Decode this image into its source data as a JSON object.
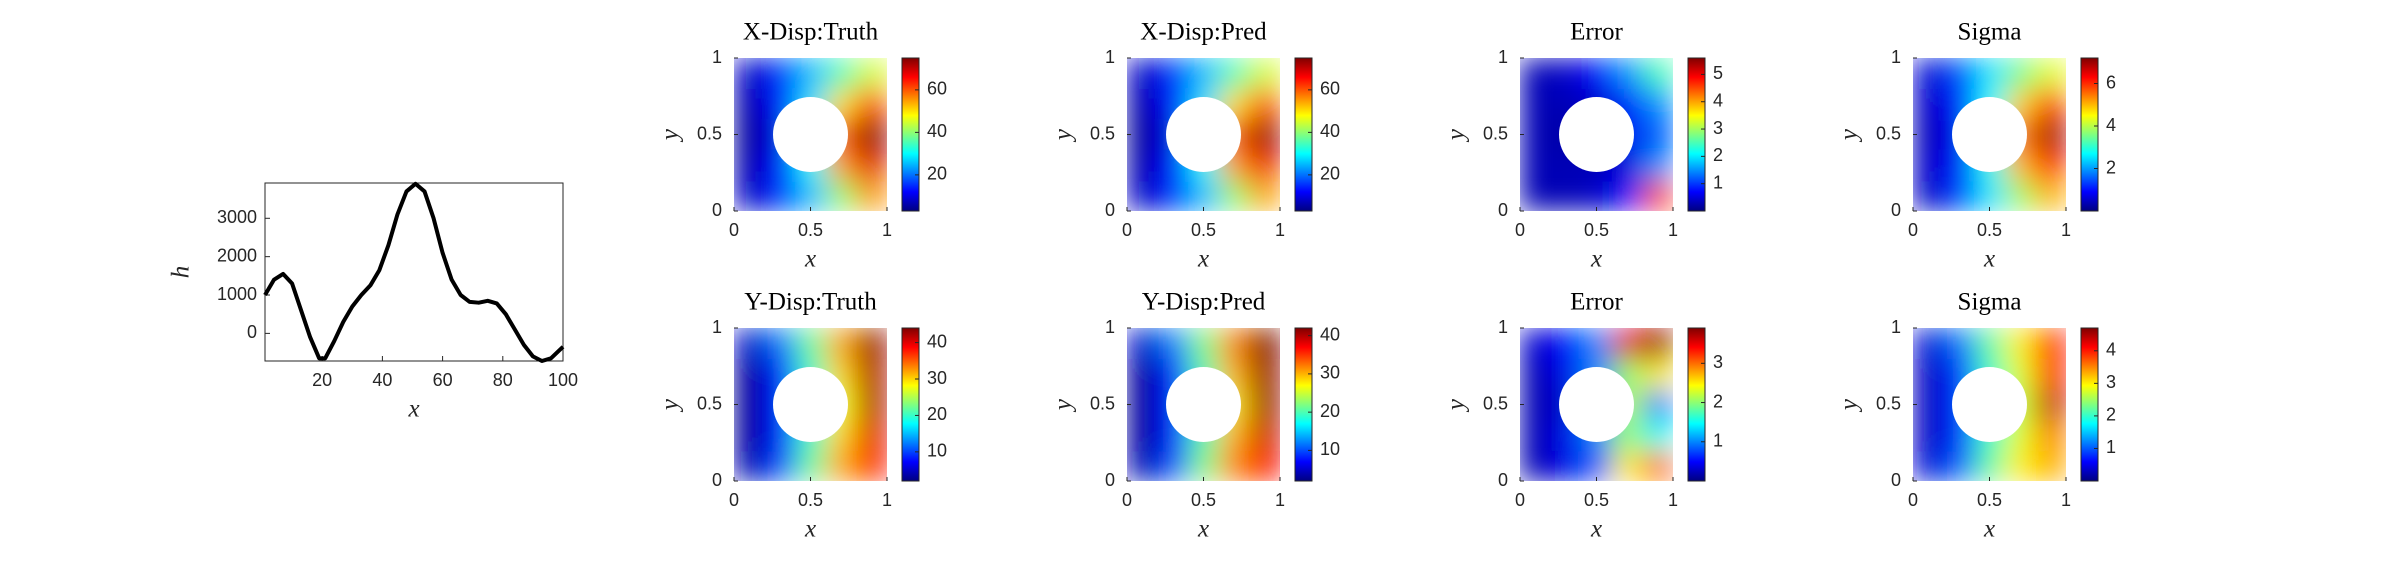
{
  "chart_data": [
    {
      "type": "line",
      "xlabel": "x",
      "ylabel": "h",
      "x": [
        1,
        4,
        7,
        10,
        13,
        16,
        19,
        21,
        24,
        27,
        30,
        33,
        36,
        39,
        42,
        45,
        48,
        51,
        54,
        57,
        60,
        63,
        66,
        69,
        72,
        75,
        78,
        81,
        84,
        87,
        90,
        93,
        96,
        100
      ],
      "series": [
        {
          "color": "#000000",
          "values": [
            1000,
            1400,
            1550,
            1300,
            600,
            -100,
            -650,
            -650,
            -200,
            300,
            700,
            1000,
            1250,
            1650,
            2300,
            3100,
            3700,
            3900,
            3700,
            3000,
            2100,
            1400,
            1000,
            820,
            800,
            850,
            780,
            500,
            100,
            -300,
            -600,
            -720,
            -650,
            -350
          ]
        }
      ],
      "xlim": [
        1,
        100
      ],
      "xticks": [
        20,
        40,
        60,
        80,
        100
      ],
      "ylim": [
        -720,
        3920
      ],
      "yticks": [
        0,
        1000,
        2000,
        3000
      ]
    },
    {
      "type": "heatmap",
      "title": "X-Disp:Truth",
      "xlabel": "x",
      "ylabel": "y",
      "xlim": [
        0,
        1
      ],
      "ylim": [
        0,
        1
      ],
      "xticks": [
        0,
        0.5,
        1
      ],
      "yticks": [
        0,
        0.5,
        1
      ],
      "clim": [
        3,
        75
      ],
      "cticks": [
        20,
        40,
        60
      ],
      "z": [
        [
          8,
          15,
          25,
          40,
          55
        ],
        [
          6,
          12,
          30,
          55,
          68
        ],
        [
          5,
          10,
          35,
          60,
          75
        ],
        [
          6,
          12,
          28,
          50,
          62
        ],
        [
          8,
          15,
          25,
          35,
          45
        ]
      ]
    },
    {
      "type": "heatmap",
      "title": "X-Disp:Pred",
      "xlabel": "x",
      "ylabel": "y",
      "xlim": [
        0,
        1
      ],
      "ylim": [
        0,
        1
      ],
      "xticks": [
        0,
        0.5,
        1
      ],
      "yticks": [
        0,
        0.5,
        1
      ],
      "clim": [
        3,
        75
      ],
      "cticks": [
        20,
        40,
        60
      ],
      "z": [
        [
          8,
          15,
          25,
          40,
          54
        ],
        [
          6,
          12,
          30,
          55,
          67
        ],
        [
          5,
          10,
          35,
          60,
          74
        ],
        [
          6,
          12,
          28,
          50,
          61
        ],
        [
          8,
          15,
          25,
          35,
          45
        ]
      ]
    },
    {
      "type": "heatmap",
      "title": "Error",
      "xlabel": "x",
      "ylabel": "y",
      "xlim": [
        0,
        1
      ],
      "ylim": [
        0,
        1
      ],
      "xticks": [
        0,
        0.5,
        1
      ],
      "yticks": [
        0,
        0.5,
        1
      ],
      "clim": [
        0,
        5.6
      ],
      "cticks": [
        1,
        2,
        3,
        4,
        5
      ],
      "z": [
        [
          0.3,
          0.3,
          0.4,
          0.8,
          4.5
        ],
        [
          0.3,
          0.3,
          0.3,
          0.5,
          1.5
        ],
        [
          0.3,
          0.2,
          0.3,
          0.6,
          1.2
        ],
        [
          0.3,
          0.3,
          0.4,
          0.8,
          1.5
        ],
        [
          0.3,
          0.4,
          0.7,
          1.5,
          2.5
        ]
      ]
    },
    {
      "type": "heatmap",
      "title": "Sigma",
      "xlabel": "x",
      "ylabel": "y",
      "xlim": [
        0,
        1
      ],
      "ylim": [
        0,
        1
      ],
      "xticks": [
        0,
        0.5,
        1
      ],
      "yticks": [
        0,
        0.5,
        1
      ],
      "clim": [
        0,
        7.2
      ],
      "cticks": [
        2,
        4,
        6
      ],
      "z": [
        [
          0.5,
          1.3,
          2.5,
          3.8,
          5
        ],
        [
          0.5,
          1,
          2.8,
          5,
          6.3
        ],
        [
          0.4,
          0.8,
          3,
          5.5,
          7
        ],
        [
          0.5,
          1,
          2.7,
          4.8,
          6
        ],
        [
          0.6,
          1.4,
          2.5,
          3.5,
          4.3
        ]
      ]
    },
    {
      "type": "heatmap",
      "title": "Y-Disp:Truth",
      "xlabel": "x",
      "ylabel": "y",
      "xlim": [
        0,
        1
      ],
      "ylim": [
        0,
        1
      ],
      "xticks": [
        0,
        0.5,
        1
      ],
      "yticks": [
        0,
        0.5,
        1
      ],
      "clim": [
        2,
        44
      ],
      "cticks": [
        10,
        20,
        30,
        40
      ],
      "z": [
        [
          4,
          10,
          22,
          32,
          38
        ],
        [
          3,
          8,
          20,
          30,
          40
        ],
        [
          3,
          8,
          18,
          28,
          42
        ],
        [
          3,
          8,
          20,
          30,
          42
        ],
        [
          5,
          12,
          22,
          32,
          43
        ]
      ]
    },
    {
      "type": "heatmap",
      "title": "Y-Disp:Pred",
      "xlabel": "x",
      "ylabel": "y",
      "xlim": [
        0,
        1
      ],
      "ylim": [
        0,
        1
      ],
      "xticks": [
        0,
        0.5,
        1
      ],
      "yticks": [
        0,
        0.5,
        1
      ],
      "clim": [
        2,
        42
      ],
      "cticks": [
        10,
        20,
        30,
        40
      ],
      "z": [
        [
          4,
          10,
          22,
          32,
          37
        ],
        [
          3,
          8,
          20,
          30,
          39
        ],
        [
          3,
          8,
          18,
          28,
          41
        ],
        [
          3,
          8,
          20,
          30,
          41
        ],
        [
          5,
          12,
          22,
          32,
          42
        ]
      ]
    },
    {
      "type": "heatmap",
      "title": "Error",
      "xlabel": "x",
      "ylabel": "y",
      "xlim": [
        0,
        1
      ],
      "ylim": [
        0,
        1
      ],
      "xticks": [
        0,
        0.5,
        1
      ],
      "yticks": [
        0,
        0.5,
        1
      ],
      "clim": [
        0,
        3.9
      ],
      "cticks": [
        1,
        2,
        3
      ],
      "z": [
        [
          0.2,
          0.4,
          0.8,
          2.5,
          3
        ],
        [
          0.2,
          0.4,
          1,
          2,
          1.5
        ],
        [
          0.2,
          0.3,
          1,
          2.2,
          1
        ],
        [
          0.2,
          0.4,
          1,
          2,
          2.5
        ],
        [
          0.3,
          0.5,
          1,
          3.5,
          3.8
        ]
      ]
    },
    {
      "type": "heatmap",
      "title": "Sigma",
      "xlabel": "x",
      "ylabel": "y",
      "xlim": [
        0,
        1
      ],
      "ylim": [
        0,
        1
      ],
      "xticks": [
        0,
        0.5,
        1
      ],
      "yticks": [
        0,
        0.5,
        1
      ],
      "clim": [
        0,
        4.7
      ],
      "cticks": [
        1,
        2,
        3,
        4
      ],
      "z": [
        [
          0.4,
          1,
          2.2,
          3,
          3.3
        ],
        [
          0.3,
          0.8,
          2,
          2.8,
          3.5
        ],
        [
          0.3,
          0.8,
          1.8,
          2.7,
          4.4
        ],
        [
          0.3,
          0.8,
          2,
          2.8,
          4
        ],
        [
          0.4,
          1.1,
          2.2,
          3,
          4
        ]
      ]
    }
  ]
}
